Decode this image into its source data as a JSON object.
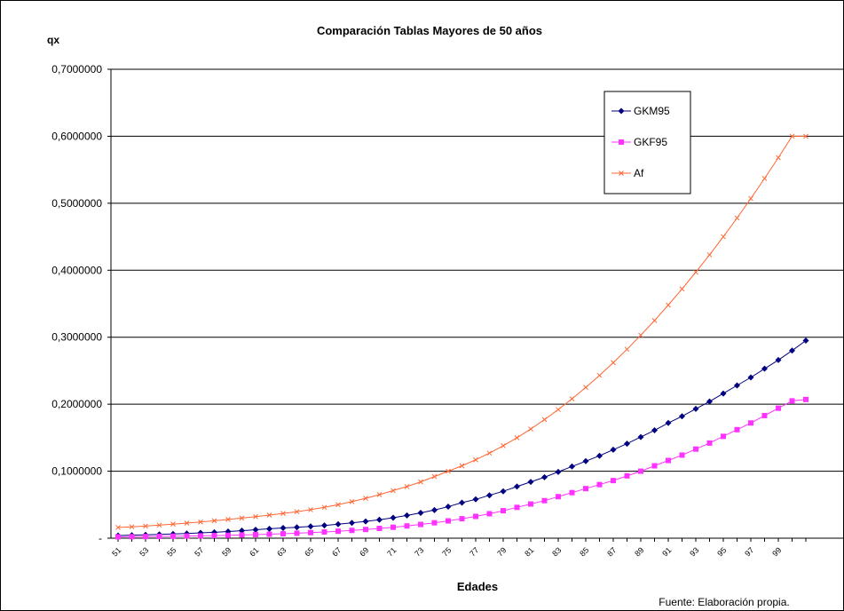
{
  "chart_data": {
    "type": "line",
    "title": "Comparación Tablas Mayores de 50 años",
    "ylabel": "qx",
    "xlabel": "Edades",
    "source_note": "Fuente: Elaboración propia.",
    "ylim": [
      0,
      0.7
    ],
    "yticks": [
      "-",
      "0,1000000",
      "0,2000000",
      "0,3000000",
      "0,4000000",
      "0,5000000",
      "0,6000000",
      "0,7000000"
    ],
    "ytick_values": [
      0,
      0.1,
      0.2,
      0.3,
      0.4,
      0.5,
      0.6,
      0.7
    ],
    "x": [
      51,
      52,
      53,
      54,
      55,
      56,
      57,
      58,
      59,
      60,
      61,
      62,
      63,
      64,
      65,
      66,
      67,
      68,
      69,
      70,
      71,
      72,
      73,
      74,
      75,
      76,
      77,
      78,
      79,
      80,
      81,
      82,
      83,
      84,
      85,
      86,
      87,
      88,
      89,
      90,
      91,
      92,
      93,
      94,
      95,
      96,
      97,
      98,
      99,
      100,
      101
    ],
    "xtick_labels": [
      "51",
      "53",
      "55",
      "57",
      "59",
      "61",
      "63",
      "65",
      "67",
      "69",
      "71",
      "73",
      "75",
      "77",
      "79",
      "81",
      "83",
      "85",
      "87",
      "89",
      "91",
      "93",
      "95",
      "97",
      "99"
    ],
    "grid": true,
    "legend_position": "top-right",
    "series": [
      {
        "name": "GKM95",
        "color": "#000080",
        "marker": "diamond",
        "values": [
          0.004,
          0.0045,
          0.005,
          0.0056,
          0.0063,
          0.007,
          0.0079,
          0.0088,
          0.01,
          0.0112,
          0.0126,
          0.014,
          0.0152,
          0.0163,
          0.0176,
          0.019,
          0.0208,
          0.0228,
          0.025,
          0.0275,
          0.0305,
          0.034,
          0.0378,
          0.042,
          0.047,
          0.053,
          0.058,
          0.064,
          0.07,
          0.077,
          0.084,
          0.091,
          0.099,
          0.107,
          0.115,
          0.123,
          0.132,
          0.141,
          0.151,
          0.161,
          0.172,
          0.182,
          0.193,
          0.204,
          0.216,
          0.228,
          0.24,
          0.253,
          0.266,
          0.28,
          0.295
        ]
      },
      {
        "name": "GKF95",
        "color": "#ff33ff",
        "marker": "square",
        "values": [
          0.002,
          0.0022,
          0.0024,
          0.0026,
          0.0029,
          0.0032,
          0.0035,
          0.0039,
          0.0043,
          0.0048,
          0.0053,
          0.0059,
          0.0066,
          0.0074,
          0.0083,
          0.0093,
          0.0104,
          0.0116,
          0.013,
          0.0146,
          0.0163,
          0.0183,
          0.0205,
          0.023,
          0.0258,
          0.029,
          0.0325,
          0.0365,
          0.041,
          0.046,
          0.051,
          0.056,
          0.062,
          0.068,
          0.074,
          0.08,
          0.086,
          0.093,
          0.1,
          0.108,
          0.116,
          0.124,
          0.133,
          0.142,
          0.152,
          0.162,
          0.172,
          0.183,
          0.194,
          0.205,
          0.207
        ]
      },
      {
        "name": "Af",
        "color": "#ff6633",
        "marker": "x",
        "values": [
          0.016,
          0.017,
          0.018,
          0.0195,
          0.021,
          0.0225,
          0.0242,
          0.026,
          0.028,
          0.03,
          0.0322,
          0.0345,
          0.037,
          0.0395,
          0.0425,
          0.046,
          0.05,
          0.0545,
          0.0595,
          0.065,
          0.071,
          0.077,
          0.084,
          0.092,
          0.1,
          0.108,
          0.117,
          0.127,
          0.138,
          0.15,
          0.163,
          0.177,
          0.192,
          0.208,
          0.225,
          0.243,
          0.262,
          0.282,
          0.303,
          0.325,
          0.348,
          0.372,
          0.397,
          0.423,
          0.45,
          0.478,
          0.507,
          0.537,
          0.568,
          0.6,
          0.6
        ]
      }
    ]
  }
}
